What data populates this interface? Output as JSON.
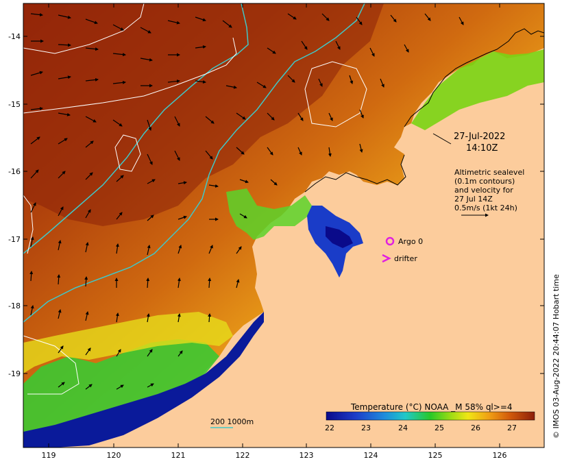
{
  "map": {
    "date": "27-Jul-2022",
    "time": "14:10Z",
    "notes": [
      "Altimetric sealevel",
      "(0.1m contours)",
      "and velocity for",
      "27 Jul 14Z",
      "0.5m/s (1kt 24h)"
    ],
    "legend": {
      "argo": "Argo 0",
      "drifter": "drifter"
    },
    "isobath": {
      "depths": "200  1000m",
      "color": "#40c8c8"
    },
    "colorbar": {
      "title": "Temperature (°C) NOAA _M 58% ql>=4",
      "ticks": [
        "22",
        "23",
        "24",
        "25",
        "26",
        "27"
      ],
      "min": 21.9,
      "max": 27.7
    },
    "x_ticks": [
      "119",
      "120",
      "121",
      "122",
      "123",
      "124",
      "125",
      "126"
    ],
    "y_ticks": [
      "-14",
      "-15",
      "-16",
      "-17",
      "-18",
      "-19"
    ],
    "credit": "©  IMOS 03-Aug-2022 20:44:07  Hobart time",
    "colors": {
      "land": "#fccc9c",
      "argo": "#e020e0",
      "drifter": "#e020e0",
      "contour": "#ffffff"
    }
  }
}
